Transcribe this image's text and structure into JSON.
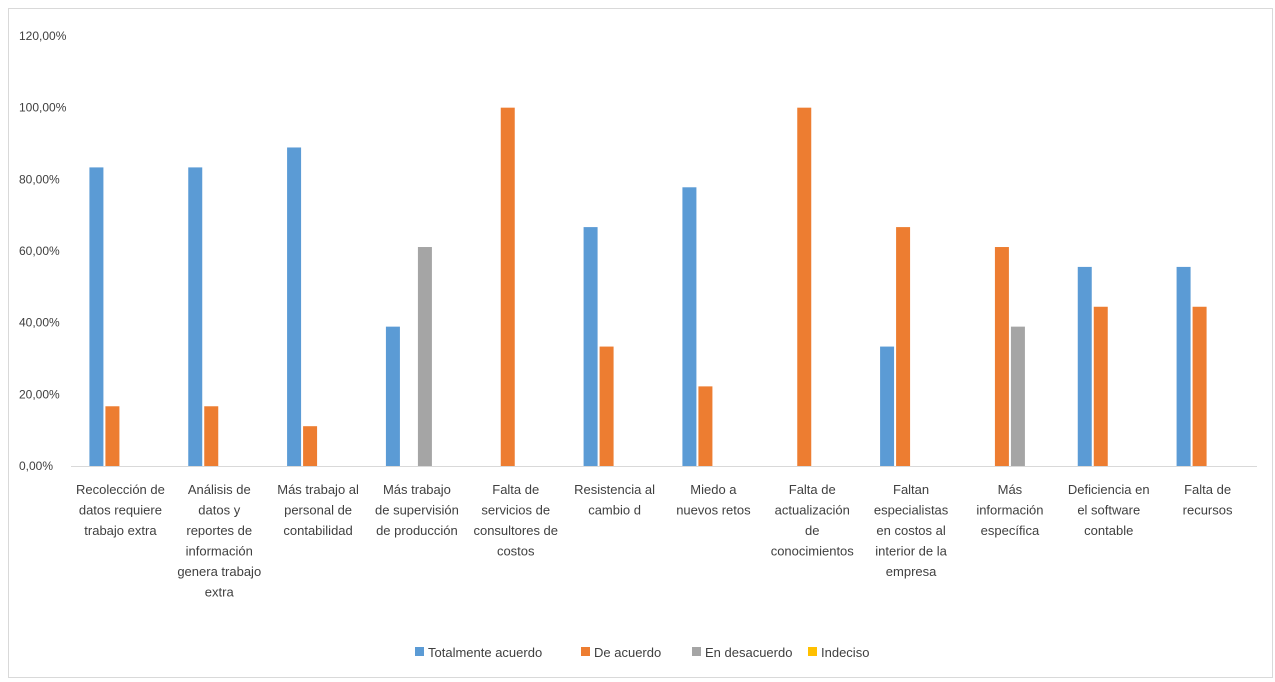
{
  "chart_data": {
    "type": "bar",
    "title": "",
    "xlabel": "",
    "ylabel": "",
    "ylim": [
      0,
      120
    ],
    "yticks": [
      "0,00%",
      "20,00%",
      "40,00%",
      "60,00%",
      "80,00%",
      "100,00%",
      "120,00%"
    ],
    "grid": false,
    "legend_position": "bottom",
    "categories": [
      "Recolección de datos requiere trabajo extra",
      "Análisis de datos y reportes de información genera trabajo extra",
      "Más trabajo al personal de contabilidad",
      "Más trabajo de supervisión de producción",
      "Falta de servicios de consultores de costos",
      "Resistencia al cambio d",
      "Miedo a nuevos retos",
      "Falta de actualización de conocimientos",
      "Faltan especialistas en costos al interior de la empresa",
      "Más información específica",
      "Deficiencia en el software contable",
      "Falta de recursos"
    ],
    "category_lines": [
      [
        "Recolección de",
        "datos requiere",
        "trabajo extra"
      ],
      [
        "Análisis de",
        "datos y",
        "reportes de",
        "información",
        "genera trabajo",
        "extra"
      ],
      [
        "Más trabajo al",
        "personal de",
        "contabilidad"
      ],
      [
        "Más trabajo",
        "de supervisión",
        "de producción"
      ],
      [
        "Falta de",
        "servicios de",
        "consultores de",
        "costos"
      ],
      [
        "Resistencia al",
        "cambio d"
      ],
      [
        "Miedo a",
        "nuevos retos"
      ],
      [
        "Falta de",
        "actualización",
        "de",
        "conocimientos"
      ],
      [
        "Faltan",
        "especialistas",
        "en costos al",
        "interior de la",
        "empresa"
      ],
      [
        "Más",
        "información",
        "específica"
      ],
      [
        "Deficiencia en",
        "el software",
        "contable"
      ],
      [
        "Falta de",
        "recursos"
      ]
    ],
    "series": [
      {
        "name": "Totalmente acuerdo",
        "color": "#5b9bd5",
        "values": [
          83.33,
          83.33,
          88.89,
          38.89,
          0,
          66.67,
          77.78,
          0,
          33.33,
          0,
          55.56,
          55.56
        ]
      },
      {
        "name": "De acuerdo",
        "color": "#ed7d31",
        "values": [
          16.67,
          16.67,
          11.11,
          0,
          100,
          33.33,
          22.22,
          100,
          66.67,
          61.11,
          44.44,
          44.44
        ]
      },
      {
        "name": "En desacuerdo",
        "color": "#a5a5a5",
        "values": [
          0,
          0,
          0,
          61.11,
          0,
          0,
          0,
          0,
          0,
          38.89,
          0,
          0
        ]
      },
      {
        "name": "Indeciso",
        "color": "#ffc000",
        "values": [
          0,
          0,
          0,
          0,
          0,
          0,
          0,
          0,
          0,
          0,
          0,
          0
        ]
      }
    ]
  }
}
